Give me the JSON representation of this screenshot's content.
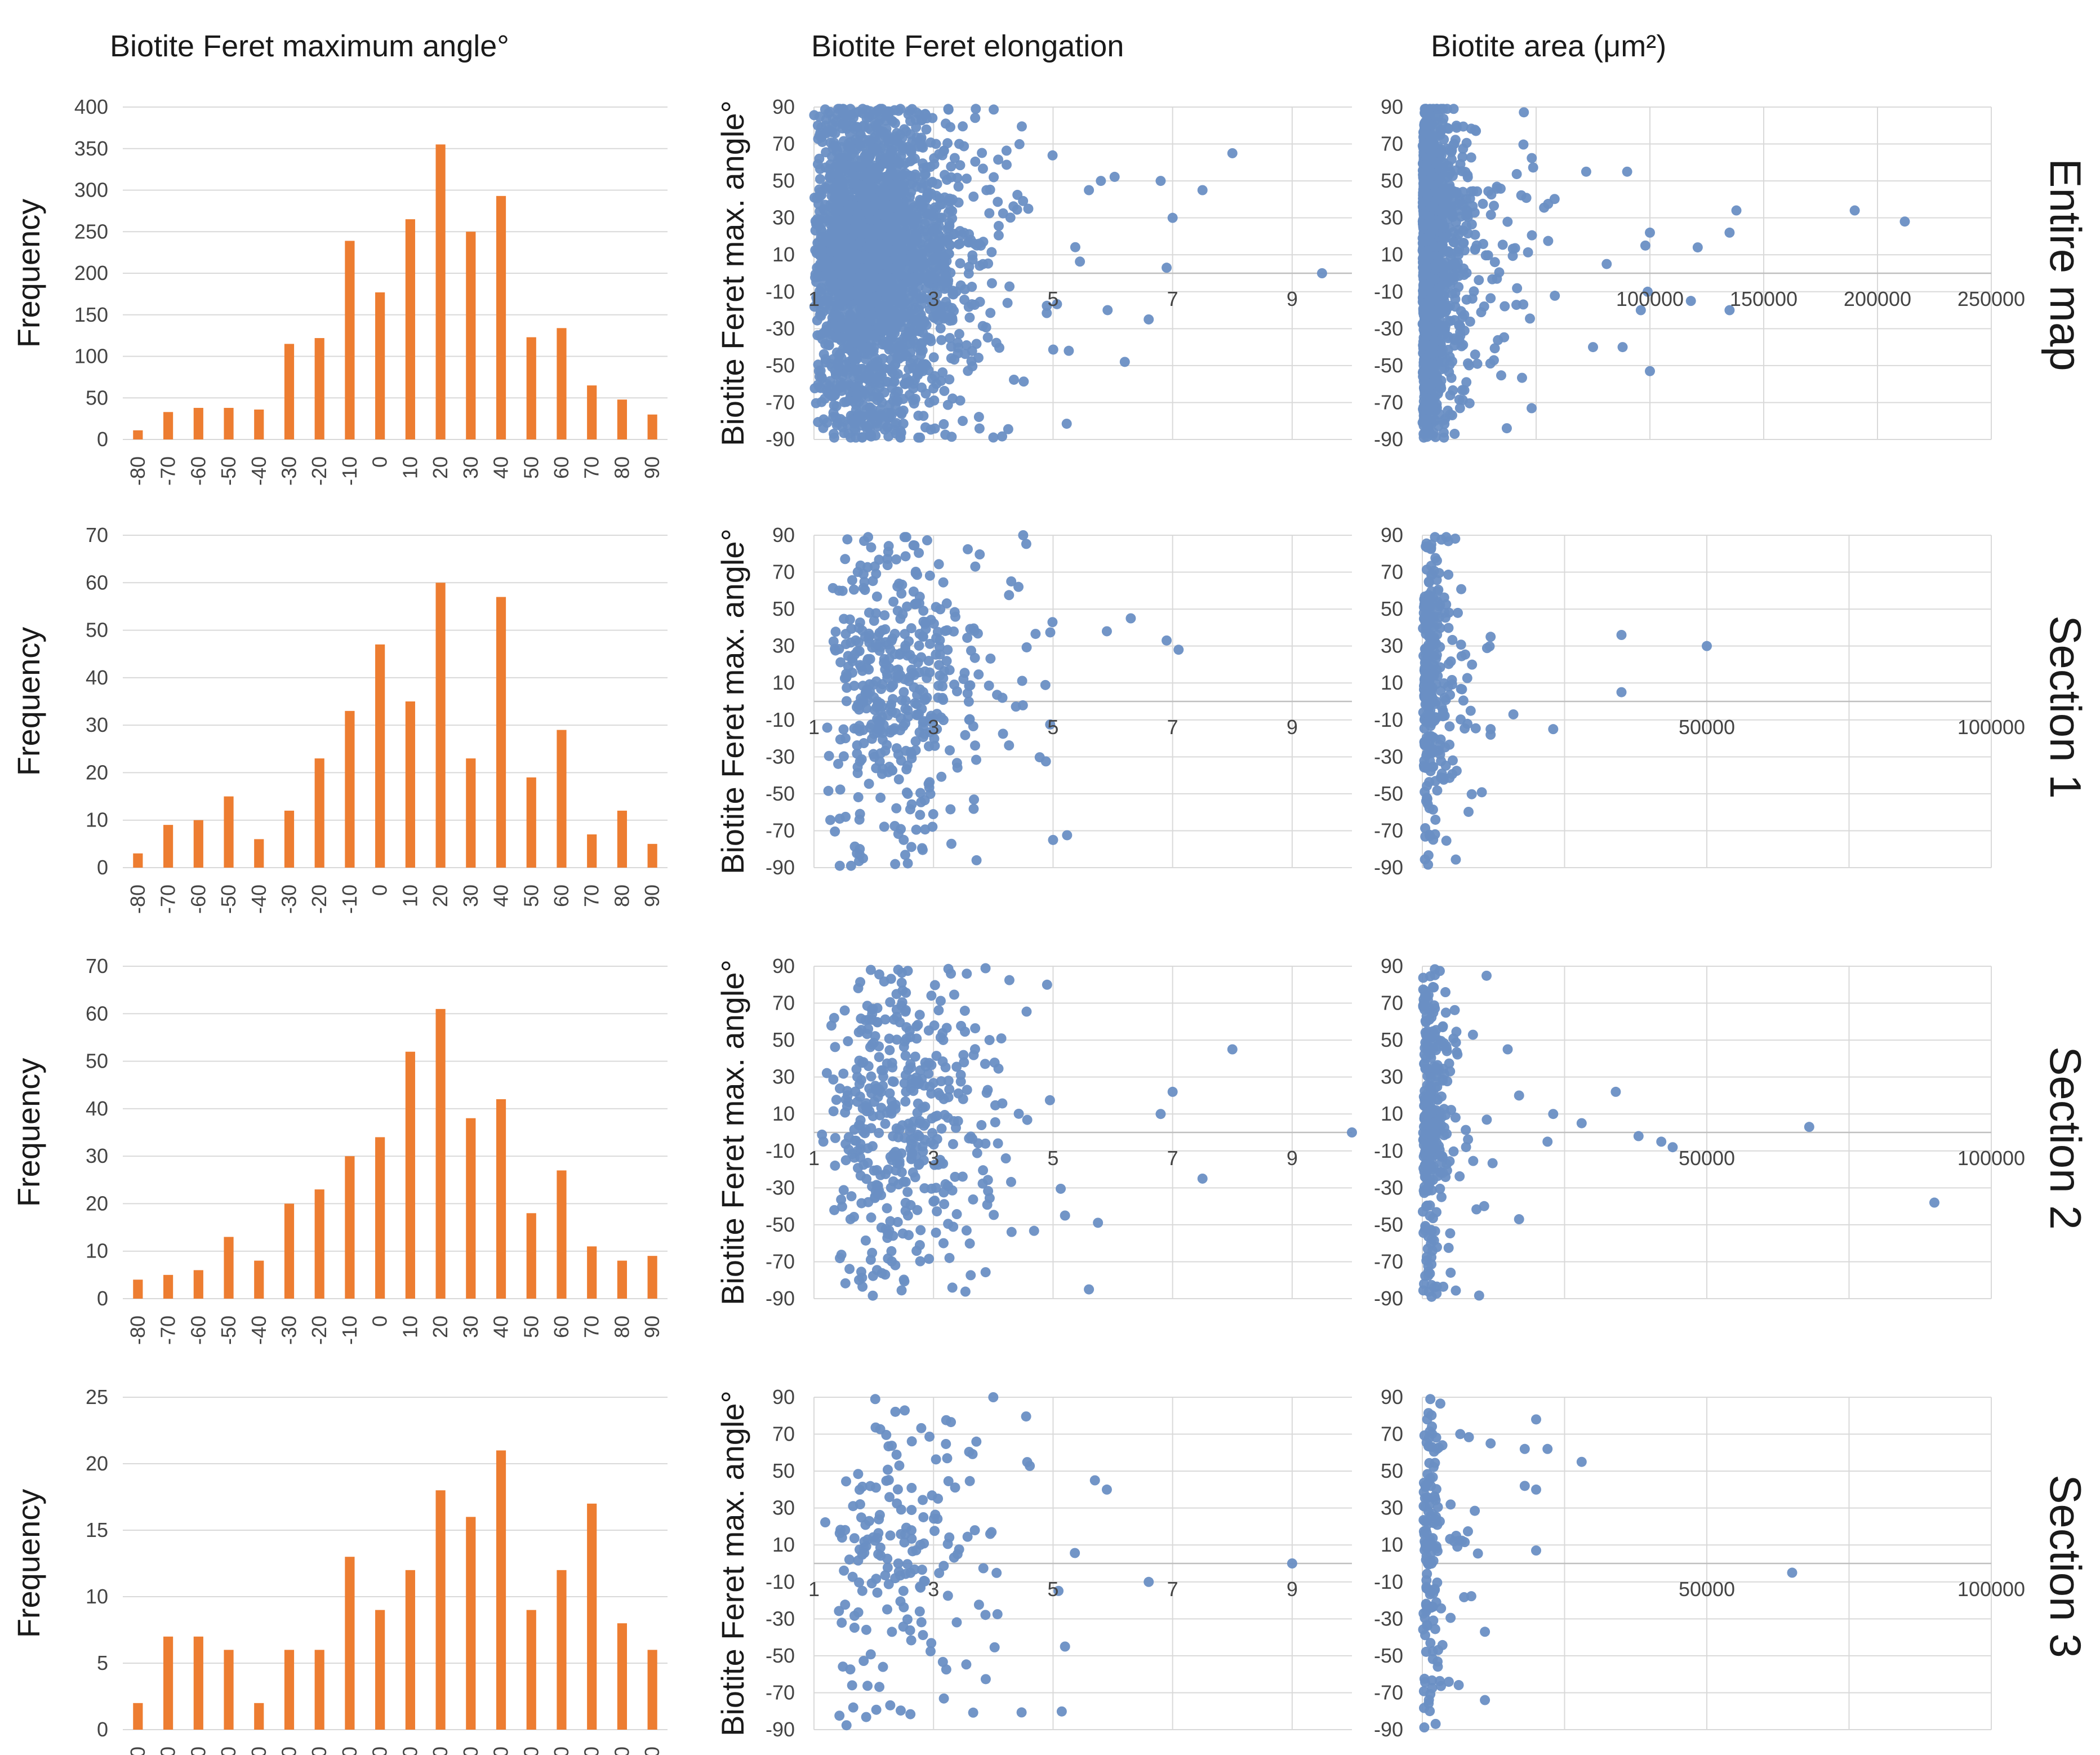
{
  "column_titles": [
    "Biotite Feret maximum angle°",
    "Biotite Feret elongation",
    "Biotite area (μm²)"
  ],
  "row_titles": [
    "Entire map",
    "Section 1",
    "Section 2",
    "Section 3"
  ],
  "colors": {
    "bar": "#ED7D31",
    "point": "#6A8FC4",
    "grid": "#d9d9d9"
  },
  "chart_data": [
    {
      "type": "bar",
      "row": "Entire map",
      "title": "Biotite Feret maximum angle°",
      "xlabel": "",
      "ylabel": "Frequency",
      "ylim": [
        0,
        400
      ],
      "yticks": [
        "0",
        "50",
        "100",
        "150",
        "200",
        "250",
        "300",
        "350",
        "400"
      ],
      "categories": [
        "-80",
        "-70",
        "-60",
        "-50",
        "-40",
        "-30",
        "-20",
        "-10",
        "0",
        "10",
        "20",
        "30",
        "40",
        "50",
        "60",
        "70",
        "80",
        "90"
      ],
      "values": [
        11,
        33,
        38,
        38,
        36,
        115,
        122,
        239,
        177,
        265,
        355,
        250,
        293,
        123,
        134,
        65,
        48,
        30
      ]
    },
    {
      "type": "bar",
      "row": "Section 1",
      "title": "Biotite Feret maximum angle°",
      "xlabel": "",
      "ylabel": "Frequency",
      "ylim": [
        0,
        70
      ],
      "yticks": [
        "0",
        "10",
        "20",
        "30",
        "40",
        "50",
        "60",
        "70"
      ],
      "categories": [
        "-80",
        "-70",
        "-60",
        "-50",
        "-40",
        "-30",
        "-20",
        "-10",
        "0",
        "10",
        "20",
        "30",
        "40",
        "50",
        "60",
        "70",
        "80",
        "90"
      ],
      "values": [
        3,
        9,
        10,
        15,
        6,
        12,
        23,
        33,
        47,
        35,
        60,
        23,
        57,
        19,
        29,
        7,
        12,
        5
      ]
    },
    {
      "type": "bar",
      "row": "Section 2",
      "title": "Biotite Feret maximum angle°",
      "xlabel": "",
      "ylabel": "Frequency",
      "ylim": [
        0,
        70
      ],
      "yticks": [
        "0",
        "10",
        "20",
        "30",
        "40",
        "50",
        "60",
        "70"
      ],
      "categories": [
        "-80",
        "-70",
        "-60",
        "-50",
        "-40",
        "-30",
        "-20",
        "-10",
        "0",
        "10",
        "20",
        "30",
        "40",
        "50",
        "60",
        "70",
        "80",
        "90"
      ],
      "values": [
        4,
        5,
        6,
        13,
        8,
        20,
        23,
        30,
        34,
        52,
        61,
        38,
        42,
        18,
        27,
        11,
        8,
        9
      ]
    },
    {
      "type": "bar",
      "row": "Section 3",
      "title": "Biotite Feret maximum angle°",
      "xlabel": "",
      "ylabel": "Frequency",
      "ylim": [
        0,
        25
      ],
      "yticks": [
        "0",
        "5",
        "10",
        "15",
        "20",
        "25"
      ],
      "categories": [
        "-80",
        "-70",
        "-60",
        "-50",
        "-40",
        "-30",
        "-20",
        "-10",
        "0",
        "10",
        "20",
        "30",
        "40",
        "50",
        "60",
        "70",
        "80",
        "90"
      ],
      "values": [
        2,
        7,
        7,
        6,
        2,
        6,
        6,
        13,
        9,
        12,
        18,
        16,
        21,
        9,
        12,
        17,
        8,
        6
      ]
    },
    {
      "type": "scatter",
      "row": "Entire map",
      "title": "Biotite Feret elongation",
      "xlabel": "",
      "ylabel": "Biotite Feret max. angle°",
      "xlim": [
        1,
        10
      ],
      "ylim": [
        -90,
        90
      ],
      "xgrid": [
        1,
        3,
        5,
        7,
        9
      ],
      "xticks": [
        "1",
        "3",
        "5",
        "7",
        "9"
      ],
      "yticks": [
        "-90",
        "-70",
        "-50",
        "-30",
        "-10",
        "10",
        "30",
        "50",
        "70",
        "90"
      ],
      "n": 2500,
      "seed": 11,
      "x_distribution": {
        "type": "lognormal",
        "min": 1.0,
        "median": 2.0,
        "spread": 0.32,
        "max": 9.5
      },
      "points": [
        [
          9.5,
          0
        ],
        [
          8,
          65
        ],
        [
          7.5,
          45
        ],
        [
          6.8,
          50
        ],
        [
          7,
          30
        ],
        [
          6.6,
          -25
        ],
        [
          6.2,
          -48
        ],
        [
          5.8,
          50
        ],
        [
          5.6,
          45
        ],
        [
          6.9,
          3
        ]
      ]
    },
    {
      "type": "scatter",
      "row": "Section 1",
      "title": "Biotite Feret elongation",
      "xlabel": "",
      "ylabel": "Biotite Feret max. angle°",
      "xlim": [
        1,
        10
      ],
      "ylim": [
        -90,
        90
      ],
      "xgrid": [
        1,
        3,
        5,
        7,
        9
      ],
      "xticks": [
        "1",
        "3",
        "5",
        "7",
        "9"
      ],
      "yticks": [
        "-90",
        "-70",
        "-50",
        "-30",
        "-10",
        "10",
        "30",
        "50",
        "70",
        "90"
      ],
      "n": 440,
      "seed": 23,
      "x_distribution": {
        "type": "lognormal",
        "min": 1.2,
        "median": 2.4,
        "spread": 0.3,
        "max": 7.2
      },
      "points": [
        [
          7.1,
          28
        ],
        [
          6.9,
          33
        ],
        [
          6.3,
          45
        ],
        [
          5.9,
          38
        ],
        [
          5.0,
          -75
        ],
        [
          4.5,
          90
        ],
        [
          4.3,
          65
        ]
      ]
    },
    {
      "type": "scatter",
      "row": "Section 2",
      "title": "Biotite Feret elongation",
      "xlabel": "",
      "ylabel": "Biotite Feret max. angle°",
      "xlim": [
        1,
        10
      ],
      "ylim": [
        -90,
        90
      ],
      "xgrid": [
        1,
        3,
        5,
        7,
        9
      ],
      "xticks": [
        "1",
        "3",
        "5",
        "7",
        "9"
      ],
      "yticks": [
        "-90",
        "-70",
        "-50",
        "-30",
        "-10",
        "10",
        "30",
        "50",
        "70",
        "90"
      ],
      "n": 430,
      "seed": 37,
      "x_distribution": {
        "type": "lognormal",
        "min": 1.1,
        "median": 2.5,
        "spread": 0.3,
        "max": 7.0
      },
      "points": [
        [
          10,
          0
        ],
        [
          8,
          45
        ],
        [
          7.5,
          -25
        ],
        [
          7.0,
          22
        ],
        [
          6.8,
          10
        ],
        [
          5.6,
          -85
        ],
        [
          5.2,
          -45
        ],
        [
          4.9,
          80
        ]
      ]
    },
    {
      "type": "scatter",
      "row": "Section 3",
      "title": "Biotite Feret elongation",
      "xlabel": "",
      "ylabel": "Biotite Feret max. angle°",
      "xlim": [
        1,
        10
      ],
      "ylim": [
        -90,
        90
      ],
      "xgrid": [
        1,
        3,
        5,
        7,
        9
      ],
      "xticks": [
        "1",
        "3",
        "5",
        "7",
        "9"
      ],
      "yticks": [
        "-90",
        "-70",
        "-50",
        "-30",
        "-10",
        "10",
        "30",
        "50",
        "70",
        "90"
      ],
      "n": 180,
      "seed": 41,
      "x_distribution": {
        "type": "lognormal",
        "min": 1.1,
        "median": 2.4,
        "spread": 0.3,
        "max": 5.8
      },
      "points": [
        [
          9.0,
          0
        ],
        [
          6.6,
          -10
        ],
        [
          5.9,
          40
        ],
        [
          5.7,
          45
        ],
        [
          5.2,
          -45
        ],
        [
          4.0,
          90
        ]
      ]
    },
    {
      "type": "scatter",
      "row": "Entire map",
      "title": "Biotite area (μm²)",
      "xlabel": "",
      "ylabel": "",
      "xlim": [
        0,
        250000
      ],
      "ylim": [
        -90,
        90
      ],
      "xgrid": [
        0,
        50000,
        100000,
        150000,
        200000,
        250000
      ],
      "xticks": [
        "100000",
        "150000",
        "200000",
        "250000"
      ],
      "xtick_values": [
        100000,
        150000,
        200000,
        250000
      ],
      "yticks": [
        "-90",
        "-70",
        "-50",
        "-30",
        "-10",
        "10",
        "30",
        "50",
        "70",
        "90"
      ],
      "n": 1800,
      "seed": 53,
      "x_distribution": {
        "type": "lognormal",
        "min": 100,
        "median": 3000,
        "spread": 1.1,
        "max": 60000
      },
      "points": [
        [
          212000,
          28
        ],
        [
          190000,
          34
        ],
        [
          138000,
          34
        ],
        [
          135000,
          22
        ],
        [
          121000,
          14
        ],
        [
          100000,
          22
        ],
        [
          98000,
          15
        ],
        [
          96000,
          -20
        ],
        [
          99000,
          -10
        ],
        [
          90000,
          55
        ],
        [
          81000,
          5
        ],
        [
          72000,
          55
        ],
        [
          100000,
          -53
        ],
        [
          88000,
          -40
        ],
        [
          75000,
          -40
        ],
        [
          135000,
          -20
        ],
        [
          118000,
          -15
        ]
      ]
    },
    {
      "type": "scatter",
      "row": "Section 1",
      "title": "Biotite area (μm²)",
      "xlabel": "",
      "ylabel": "",
      "xlim": [
        0,
        100000
      ],
      "ylim": [
        -90,
        90
      ],
      "xgrid": [
        0,
        25000,
        50000,
        75000,
        100000
      ],
      "xticks": [
        "50000",
        "100000"
      ],
      "xtick_values": [
        50000,
        100000
      ],
      "yticks": [
        "-90",
        "-70",
        "-50",
        "-30",
        "-10",
        "10",
        "30",
        "50",
        "70",
        "90"
      ],
      "n": 300,
      "seed": 61,
      "x_distribution": {
        "type": "lognormal",
        "min": 50,
        "median": 1500,
        "spread": 0.9,
        "max": 12000
      },
      "points": [
        [
          50000,
          30
        ],
        [
          35000,
          36
        ],
        [
          35000,
          5
        ],
        [
          23000,
          -15
        ],
        [
          16000,
          -7
        ],
        [
          12000,
          35
        ],
        [
          12000,
          -15
        ],
        [
          12000,
          -18
        ]
      ]
    },
    {
      "type": "scatter",
      "row": "Section 2",
      "title": "Biotite area (μm²)",
      "xlabel": "",
      "ylabel": "",
      "xlim": [
        0,
        100000
      ],
      "ylim": [
        -90,
        90
      ],
      "xgrid": [
        0,
        25000,
        50000,
        75000,
        100000
      ],
      "xticks": [
        "50000",
        "100000"
      ],
      "xtick_values": [
        50000,
        100000
      ],
      "yticks": [
        "-90",
        "-70",
        "-50",
        "-30",
        "-10",
        "10",
        "30",
        "50",
        "70",
        "90"
      ],
      "n": 320,
      "seed": 71,
      "x_distribution": {
        "type": "lognormal",
        "min": 50,
        "median": 1500,
        "spread": 0.9,
        "max": 14000
      },
      "points": [
        [
          90000,
          -38
        ],
        [
          68000,
          3
        ],
        [
          44000,
          -8
        ],
        [
          42000,
          -5
        ],
        [
          38000,
          -2
        ],
        [
          34000,
          22
        ],
        [
          28000,
          5
        ],
        [
          23000,
          10
        ],
        [
          22000,
          -5
        ],
        [
          17000,
          20
        ],
        [
          17000,
          -47
        ],
        [
          15000,
          45
        ]
      ]
    },
    {
      "type": "scatter",
      "row": "Section 3",
      "title": "Biotite area (μm²)",
      "xlabel": "",
      "ylabel": "",
      "xlim": [
        0,
        100000
      ],
      "ylim": [
        -90,
        90
      ],
      "xgrid": [
        0,
        25000,
        50000,
        75000,
        100000
      ],
      "xticks": [
        "50000",
        "100000"
      ],
      "xtick_values": [
        50000,
        100000
      ],
      "yticks": [
        "-90",
        "-70",
        "-50",
        "-30",
        "-10",
        "10",
        "30",
        "50",
        "70",
        "90"
      ],
      "n": 150,
      "seed": 83,
      "x_distribution": {
        "type": "lognormal",
        "min": 50,
        "median": 1500,
        "spread": 0.9,
        "max": 11000
      },
      "points": [
        [
          65000,
          -5
        ],
        [
          28000,
          55
        ],
        [
          22000,
          62
        ],
        [
          20000,
          78
        ],
        [
          20000,
          40
        ],
        [
          20000,
          7
        ],
        [
          18000,
          42
        ],
        [
          18000,
          62
        ],
        [
          12000,
          65
        ],
        [
          11000,
          -74
        ],
        [
          11000,
          -37
        ]
      ]
    }
  ]
}
